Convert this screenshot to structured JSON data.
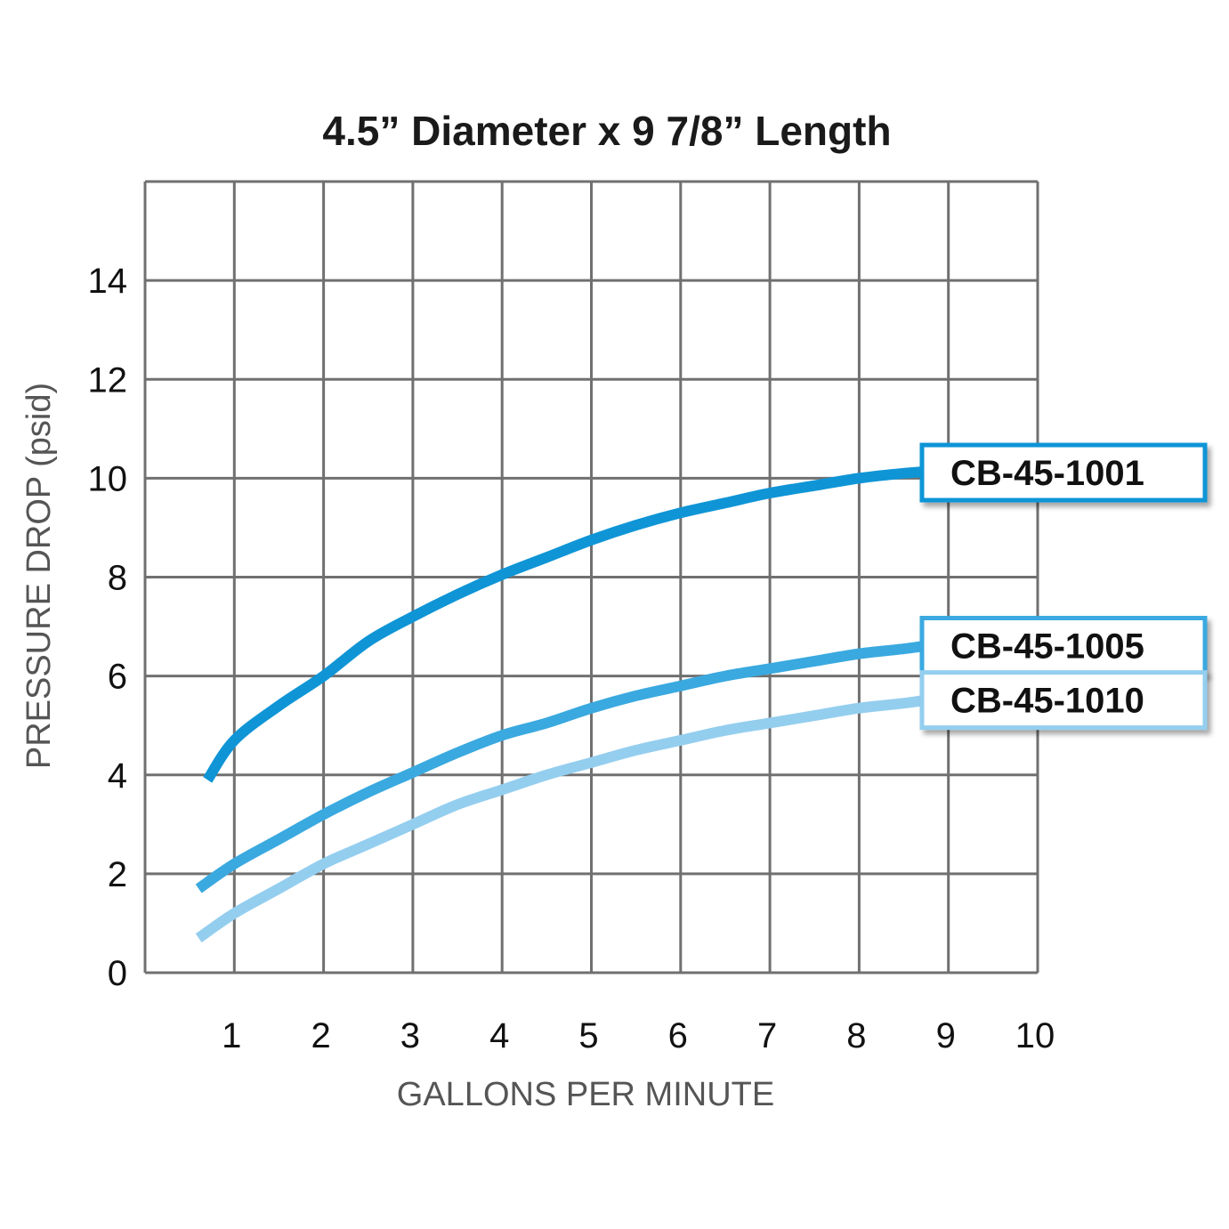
{
  "chart_data": {
    "type": "line",
    "title": "4.5” Diameter x 9 7/8” Length",
    "xlabel": "GALLONS PER MINUTE",
    "ylabel": "PRESSURE DROP (psid)",
    "xlim": [
      0,
      10
    ],
    "ylim": [
      0,
      16
    ],
    "x_ticks": [
      "1",
      "2",
      "3",
      "4",
      "5",
      "6",
      "7",
      "8",
      "9",
      "10"
    ],
    "y_ticks": [
      "0",
      "2",
      "4",
      "6",
      "8",
      "10",
      "12",
      "14"
    ],
    "grid": true,
    "legend_placement": "right-end-of-lines",
    "series": [
      {
        "name": "CB-45-1001",
        "color": "#0f95d6",
        "x": [
          0.7,
          1,
          1.5,
          2,
          2.5,
          3,
          3.5,
          4,
          4.5,
          5,
          5.5,
          6,
          6.5,
          7,
          7.5,
          8,
          8.5,
          8.9
        ],
        "y": [
          3.9,
          4.7,
          5.4,
          6.0,
          6.7,
          7.2,
          7.65,
          8.05,
          8.4,
          8.75,
          9.05,
          9.3,
          9.5,
          9.7,
          9.85,
          10.0,
          10.1,
          10.15
        ]
      },
      {
        "name": "CB-45-1005",
        "color": "#3aa9e0",
        "x": [
          0.6,
          1,
          1.5,
          2,
          2.5,
          3,
          3.5,
          4,
          4.5,
          5,
          5.5,
          6,
          6.5,
          7,
          7.5,
          8,
          8.5,
          8.9
        ],
        "y": [
          1.7,
          2.2,
          2.7,
          3.2,
          3.65,
          4.05,
          4.45,
          4.8,
          5.05,
          5.35,
          5.6,
          5.8,
          6.0,
          6.15,
          6.3,
          6.45,
          6.55,
          6.65
        ]
      },
      {
        "name": "CB-45-1010",
        "color": "#94ceef",
        "x": [
          0.6,
          1,
          1.5,
          2,
          2.5,
          3,
          3.5,
          4,
          4.5,
          5,
          5.5,
          6,
          6.5,
          7,
          7.5,
          8,
          8.5,
          8.9
        ],
        "y": [
          0.7,
          1.2,
          1.7,
          2.2,
          2.6,
          3.0,
          3.4,
          3.7,
          4.0,
          4.25,
          4.5,
          4.7,
          4.9,
          5.05,
          5.2,
          5.35,
          5.45,
          5.55
        ]
      }
    ]
  }
}
